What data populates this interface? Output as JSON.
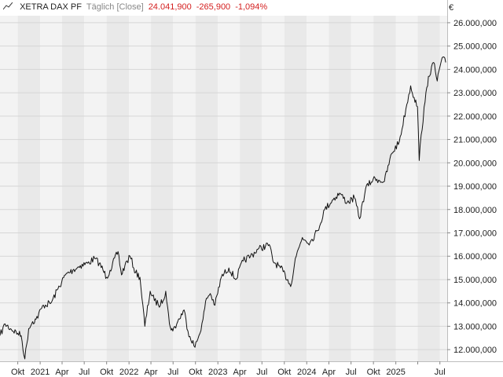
{
  "header": {
    "name": "XETRA DAX PF",
    "frequency": "Täglich [Close]",
    "last": "24.041,900",
    "change": "-265,900",
    "change_pct": "-1,094%",
    "change_color": "#d42020",
    "icon": "line-chart-icon"
  },
  "chart_data": {
    "type": "line",
    "unit": "€",
    "ylim": [
      11500,
      26300
    ],
    "yticks": [
      12000,
      13000,
      14000,
      15000,
      16000,
      17000,
      18000,
      19000,
      20000,
      21000,
      22000,
      23000,
      24000,
      25000,
      26000
    ],
    "ytick_labels": [
      "12.000,000",
      "13.000,000",
      "14.000,000",
      "15.000,000",
      "16.000,000",
      "17.000,000",
      "18.000,000",
      "19.000,000",
      "20.000,000",
      "21.000,000",
      "22.000,000",
      "23.000,000",
      "24.000,000",
      "25.000,000",
      "26.000,000"
    ],
    "xlim": [
      "2020-07-20",
      "2025-07-31"
    ],
    "xticks": [
      "2020-10-01",
      "2021-01-01",
      "2021-04-01",
      "2021-07-01",
      "2021-10-01",
      "2022-01-01",
      "2022-04-01",
      "2022-07-01",
      "2022-10-01",
      "2023-01-01",
      "2023-04-01",
      "2023-07-01",
      "2023-10-01",
      "2024-01-01",
      "2024-04-01",
      "2024-07-01",
      "2024-10-01",
      "2025-01-01",
      "2025-04-01",
      "2025-07-01"
    ],
    "xtick_labels": [
      "Okt",
      "2021",
      "Apr",
      "Jul",
      "Okt",
      "2022",
      "Apr",
      "Jul",
      "Okt",
      "2023",
      "Apr",
      "Jul",
      "Okt",
      "2024",
      "Apr",
      "Jul",
      "Okt",
      "2025",
      "",
      "Jul"
    ],
    "grid": true,
    "line_color": "#111111",
    "band_colors": [
      "#f3f3f3",
      "#e9e9e9"
    ],
    "series": [
      {
        "x": [
          "2020-07-20",
          "2020-08-10",
          "2020-09-01",
          "2020-10-01",
          "2020-10-15",
          "2020-10-30",
          "2020-11-15",
          "2020-12-01",
          "2020-12-15",
          "2021-01-15",
          "2021-02-15",
          "2021-03-15",
          "2021-04-15",
          "2021-05-15",
          "2021-06-15",
          "2021-07-15",
          "2021-08-13",
          "2021-09-01",
          "2021-10-01",
          "2021-10-15",
          "2021-11-17",
          "2021-12-01",
          "2021-12-15",
          "2022-01-05",
          "2022-01-28",
          "2022-02-15",
          "2022-03-07",
          "2022-03-29",
          "2022-04-15",
          "2022-05-10",
          "2022-06-01",
          "2022-06-16",
          "2022-06-30",
          "2022-07-20",
          "2022-08-15",
          "2022-08-31",
          "2022-09-29",
          "2022-10-15",
          "2022-11-01",
          "2022-11-15",
          "2022-12-01",
          "2022-12-20",
          "2023-01-15",
          "2023-02-15",
          "2023-03-15",
          "2023-04-15",
          "2023-05-15",
          "2023-06-15",
          "2023-07-31",
          "2023-08-15",
          "2023-09-15",
          "2023-10-15",
          "2023-10-27",
          "2023-11-15",
          "2023-12-14",
          "2024-01-15",
          "2024-02-15",
          "2024-03-15",
          "2024-04-15",
          "2024-05-15",
          "2024-06-15",
          "2024-07-15",
          "2024-08-05",
          "2024-08-30",
          "2024-09-30",
          "2024-10-15",
          "2024-11-15",
          "2024-12-15",
          "2025-01-15",
          "2025-02-15",
          "2025-03-03",
          "2025-03-17",
          "2025-03-31",
          "2025-04-07",
          "2025-04-15",
          "2025-05-01",
          "2025-05-15",
          "2025-06-05",
          "2025-06-20",
          "2025-07-01",
          "2025-07-10",
          "2025-07-25"
        ],
        "values": [
          12600,
          13100,
          12900,
          12700,
          12600,
          11600,
          12900,
          13200,
          13300,
          13900,
          14000,
          14600,
          15200,
          15400,
          15600,
          15700,
          15900,
          15700,
          15100,
          15400,
          16200,
          15200,
          15600,
          16000,
          15300,
          15100,
          13000,
          14500,
          14100,
          13900,
          14500,
          13100,
          12800,
          13200,
          13700,
          12800,
          12100,
          12600,
          13300,
          14200,
          14400,
          13900,
          15100,
          15500,
          15000,
          15800,
          16000,
          16300,
          16500,
          15800,
          15500,
          15000,
          14700,
          15900,
          16800,
          16600,
          17100,
          18000,
          18400,
          18700,
          18300,
          18500,
          17600,
          18900,
          19300,
          19300,
          19200,
          20400,
          20900,
          22500,
          23300,
          22800,
          22400,
          20100,
          21200,
          22600,
          23700,
          24300,
          23500,
          24100,
          24500,
          24300
        ]
      }
    ]
  }
}
